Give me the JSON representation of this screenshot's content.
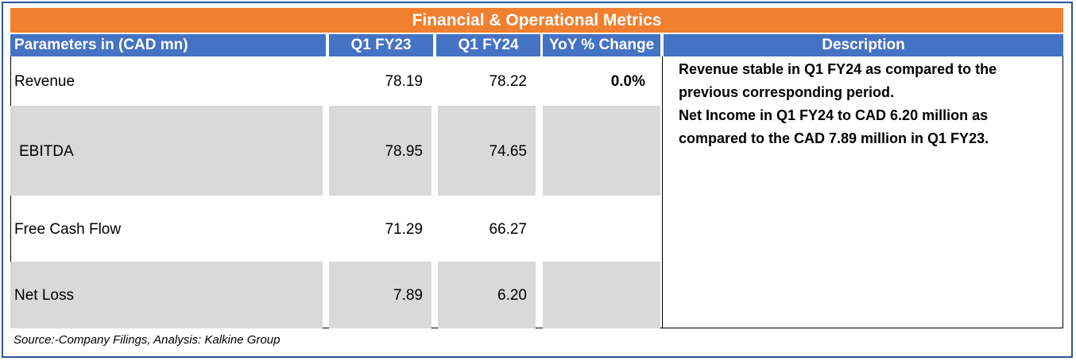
{
  "title": "Financial & Operational Metrics",
  "headers": {
    "parameter": "Parameters in (CAD mn)",
    "q1fy23": "Q1 FY23",
    "q1fy24": "Q1 FY24",
    "yoy": "YoY % Change",
    "description": "Description"
  },
  "rows": [
    {
      "label": "Revenue",
      "q1fy23": "78.19",
      "q1fy24": "78.22",
      "yoy": "0.0%"
    },
    {
      "label": "EBITDA",
      "q1fy23": "78.95",
      "q1fy24": "74.65",
      "yoy": ""
    },
    {
      "label": "Free Cash Flow",
      "q1fy23": "71.29",
      "q1fy24": "66.27",
      "yoy": ""
    },
    {
      "label": "Net Loss",
      "q1fy23": "7.89",
      "q1fy24": "6.20",
      "yoy": ""
    }
  ],
  "description": {
    "line1": "Revenue stable in  Q1 FY24 as compared to the previous corresponding period.",
    "line2": "Net Income in  Q1 FY24  to CAD 6.20 million as compared to the CAD 7.89 million in Q1 FY23."
  },
  "source": "Source:-Company Filings, Analysis: Kalkine Group",
  "colors": {
    "title_bg": "#f07f2f",
    "header_bg": "#4472c4",
    "shaded_row": "#d9d9d9",
    "frame_border": "#2f5597"
  }
}
